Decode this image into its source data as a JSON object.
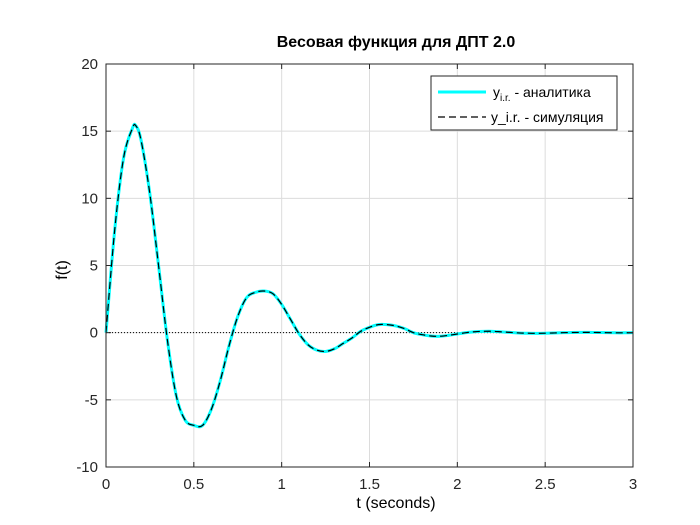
{
  "chart_data": {
    "type": "line",
    "title": "Весовая функция для ДПТ 2.0",
    "xlabel": "t (seconds)",
    "ylabel": "f(t)",
    "xlim": [
      0,
      3
    ],
    "ylim": [
      -10,
      20
    ],
    "x_ticks": [
      0,
      0.5,
      1,
      1.5,
      2,
      2.5,
      3
    ],
    "x_tick_labels": [
      "0",
      "0.5",
      "1",
      "1.5",
      "2",
      "2.5",
      "3"
    ],
    "y_ticks": [
      -10,
      -5,
      0,
      5,
      10,
      15,
      20
    ],
    "y_tick_labels": [
      "-10",
      "-5",
      "0",
      "5",
      "10",
      "15",
      "20"
    ],
    "grid": true,
    "legend_position": "top-right",
    "reference_line": {
      "y": 0,
      "style": "dotted",
      "color": "#000000"
    },
    "series": [
      {
        "name": "y",
        "name_subscript": "i.r.",
        "name_suffix": " - аналитика",
        "color": "#00FFFF",
        "style": "solid",
        "x": [
          0,
          0.05,
          0.1,
          0.15,
          0.17,
          0.2,
          0.25,
          0.3,
          0.35,
          0.4,
          0.45,
          0.5,
          0.55,
          0.6,
          0.65,
          0.7,
          0.75,
          0.8,
          0.85,
          0.9,
          0.95,
          1.0,
          1.05,
          1.1,
          1.15,
          1.2,
          1.25,
          1.3,
          1.35,
          1.4,
          1.45,
          1.5,
          1.55,
          1.6,
          1.65,
          1.7,
          1.75,
          1.8,
          1.85,
          1.9,
          1.95,
          2.0,
          2.05,
          2.1,
          2.15,
          2.2,
          2.25,
          2.3,
          2.35,
          2.4,
          2.45,
          2.5,
          2.55,
          2.6,
          2.65,
          2.7,
          2.75,
          2.8,
          2.85,
          2.9,
          2.95,
          3.0
        ],
        "y": [
          0,
          7.7,
          13.0,
          15.2,
          15.4,
          14.3,
          10.3,
          4.9,
          -0.6,
          -4.7,
          -6.5,
          -6.9,
          -6.9,
          -5.7,
          -3.6,
          -1.0,
          1.2,
          2.6,
          3.0,
          3.1,
          2.9,
          2.1,
          1.0,
          -0.1,
          -0.9,
          -1.3,
          -1.4,
          -1.2,
          -0.8,
          -0.4,
          0.1,
          0.4,
          0.6,
          0.6,
          0.5,
          0.3,
          0.0,
          -0.15,
          -0.25,
          -0.27,
          -0.2,
          -0.1,
          0.0,
          0.07,
          0.1,
          0.1,
          0.06,
          0.02,
          -0.02,
          -0.04,
          -0.05,
          -0.04,
          -0.02,
          0.0,
          0.01,
          0.02,
          0.02,
          0.01,
          0.0,
          -0.01,
          -0.01,
          0.0
        ]
      },
      {
        "name": "y_i.r. - симуляция",
        "color": "#000000",
        "style": "dashed",
        "x": [
          0,
          0.05,
          0.1,
          0.15,
          0.17,
          0.2,
          0.25,
          0.3,
          0.35,
          0.4,
          0.45,
          0.5,
          0.55,
          0.6,
          0.65,
          0.7,
          0.75,
          0.8,
          0.85,
          0.9,
          0.95,
          1.0,
          1.05,
          1.1,
          1.15,
          1.2,
          1.25,
          1.3,
          1.35,
          1.4,
          1.45,
          1.5,
          1.55,
          1.6,
          1.65,
          1.7,
          1.75,
          1.8,
          1.85,
          1.9,
          1.95,
          2.0,
          2.05,
          2.1,
          2.15,
          2.2,
          2.25,
          2.3,
          2.35,
          2.4,
          2.45,
          2.5,
          2.55,
          2.6,
          2.65,
          2.7,
          2.75,
          2.8,
          2.85,
          2.9,
          2.95,
          3.0
        ],
        "y": [
          0,
          7.7,
          13.0,
          15.2,
          15.4,
          14.3,
          10.3,
          4.9,
          -0.6,
          -4.7,
          -6.5,
          -6.9,
          -6.9,
          -5.7,
          -3.6,
          -1.0,
          1.2,
          2.6,
          3.0,
          3.1,
          2.9,
          2.1,
          1.0,
          -0.1,
          -0.9,
          -1.3,
          -1.4,
          -1.2,
          -0.8,
          -0.4,
          0.1,
          0.4,
          0.6,
          0.6,
          0.5,
          0.3,
          0.0,
          -0.15,
          -0.25,
          -0.27,
          -0.2,
          -0.1,
          0.0,
          0.07,
          0.1,
          0.1,
          0.06,
          0.02,
          -0.02,
          -0.04,
          -0.05,
          -0.04,
          -0.02,
          0.0,
          0.01,
          0.02,
          0.02,
          0.01,
          0.0,
          -0.01,
          -0.01,
          0.0
        ]
      }
    ]
  }
}
